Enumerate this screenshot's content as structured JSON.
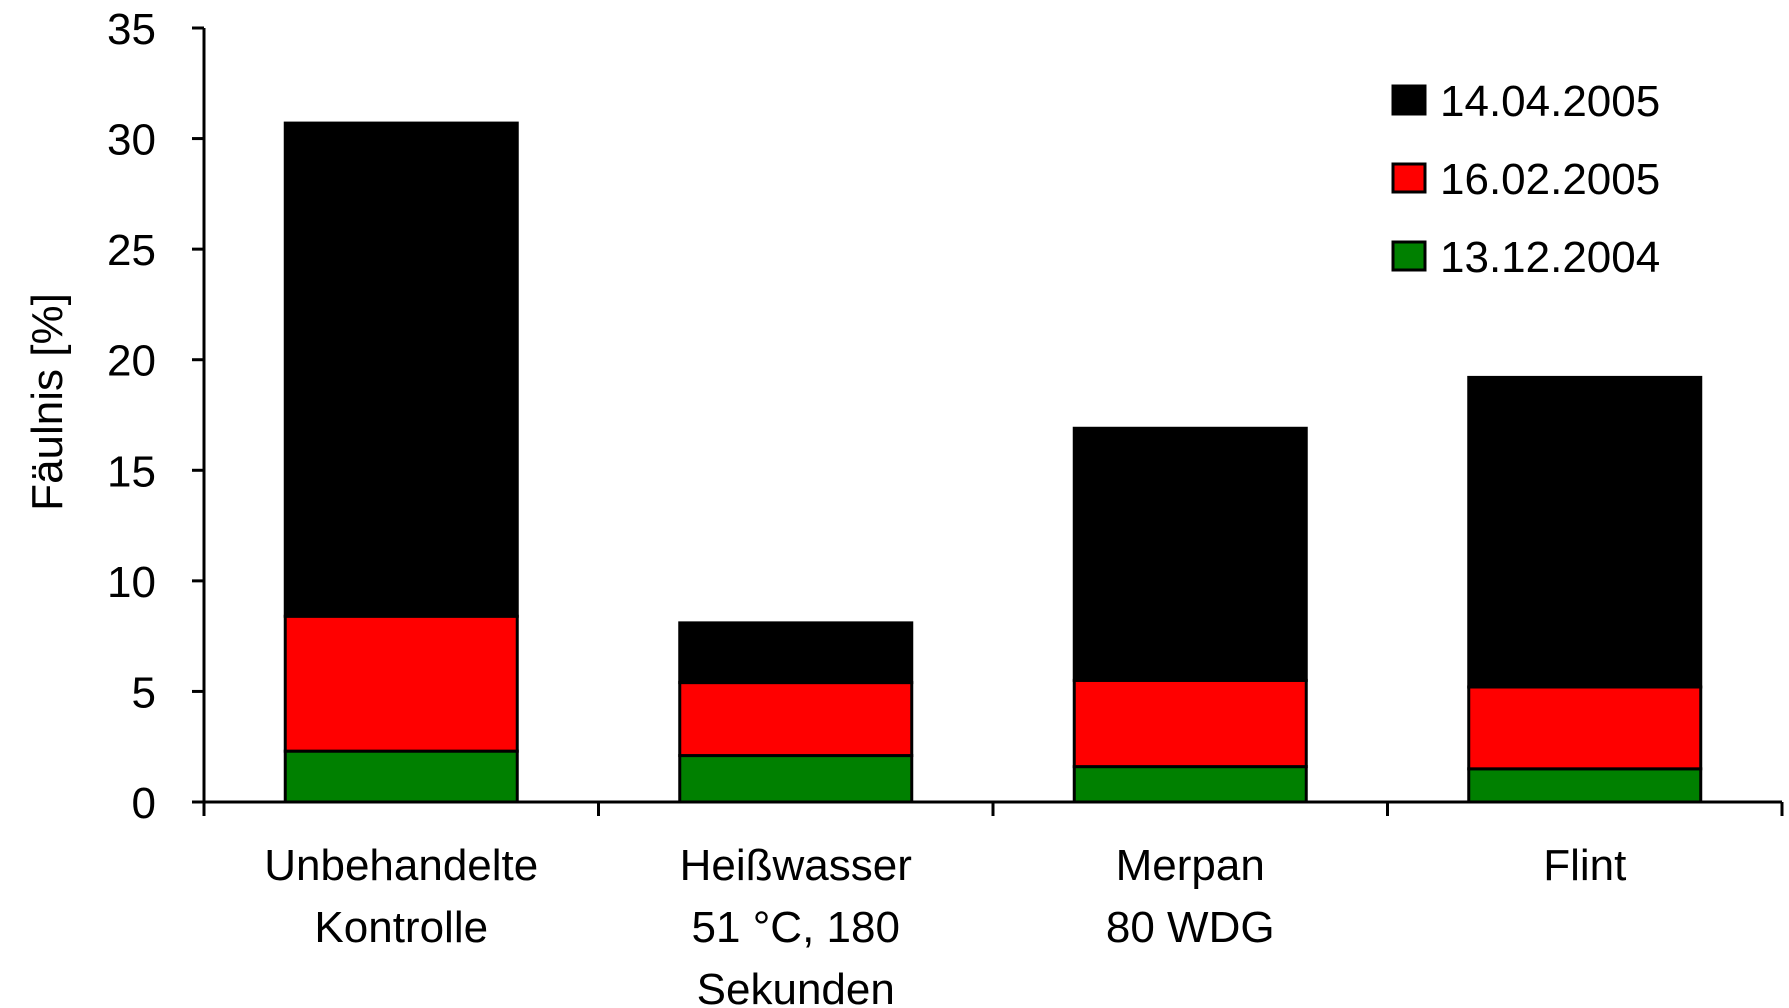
{
  "chart_data": {
    "type": "bar",
    "stacked": true,
    "title": "",
    "xlabel": "",
    "ylabel": "Fäulnis [%]",
    "ylim": [
      0,
      35
    ],
    "yticks": [
      "0",
      "5",
      "10",
      "15",
      "20",
      "25",
      "30",
      "35"
    ],
    "grid": false,
    "legend_position": "top-right",
    "categories": [
      [
        "Unbehandelte",
        "Kontrolle"
      ],
      [
        "Heißwasser",
        "51 °C, 180",
        "Sekunden"
      ],
      [
        "Merpan",
        "80 WDG"
      ],
      [
        "Flint"
      ]
    ],
    "series": [
      {
        "name": "13.12.2004",
        "color": "#008000",
        "values": [
          2.3,
          2.1,
          1.6,
          1.5
        ]
      },
      {
        "name": "16.02.2005",
        "color": "#ff0000",
        "values": [
          6.1,
          3.3,
          3.9,
          3.7
        ]
      },
      {
        "name": "14.04.2005",
        "color": "#000000",
        "values": [
          22.3,
          2.7,
          11.4,
          14.0
        ]
      }
    ],
    "legend_order": [
      "14.04.2005",
      "16.02.2005",
      "13.12.2004"
    ]
  }
}
